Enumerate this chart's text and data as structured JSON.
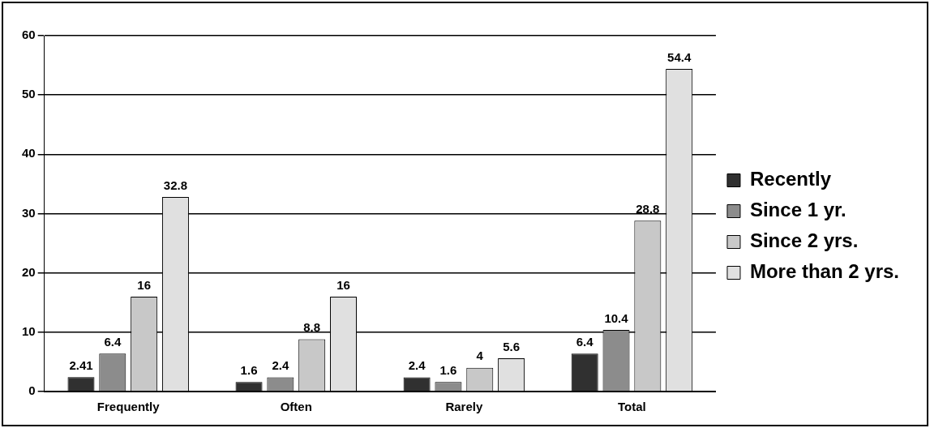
{
  "chart_data": {
    "type": "bar",
    "categories": [
      "Frequently",
      "Often",
      "Rarely",
      "Total"
    ],
    "series": [
      {
        "name": "Recently",
        "color": "#303030",
        "values": [
          2.41,
          1.6,
          2.4,
          6.4
        ]
      },
      {
        "name": "Since 1 yr.",
        "color": "#8c8c8c",
        "values": [
          6.4,
          2.4,
          1.6,
          10.4
        ]
      },
      {
        "name": "Since 2 yrs.",
        "color": "#c8c8c8",
        "values": [
          16,
          8.8,
          4,
          28.8
        ]
      },
      {
        "name": "More than 2 yrs.",
        "color": "#e0e0e0",
        "values": [
          32.8,
          16,
          5.6,
          54.4
        ]
      }
    ],
    "ylim": [
      0,
      60
    ],
    "yticks": [
      0,
      10,
      20,
      30,
      40,
      50,
      60
    ],
    "grid": "y",
    "legend": "right",
    "data_labels": true
  }
}
